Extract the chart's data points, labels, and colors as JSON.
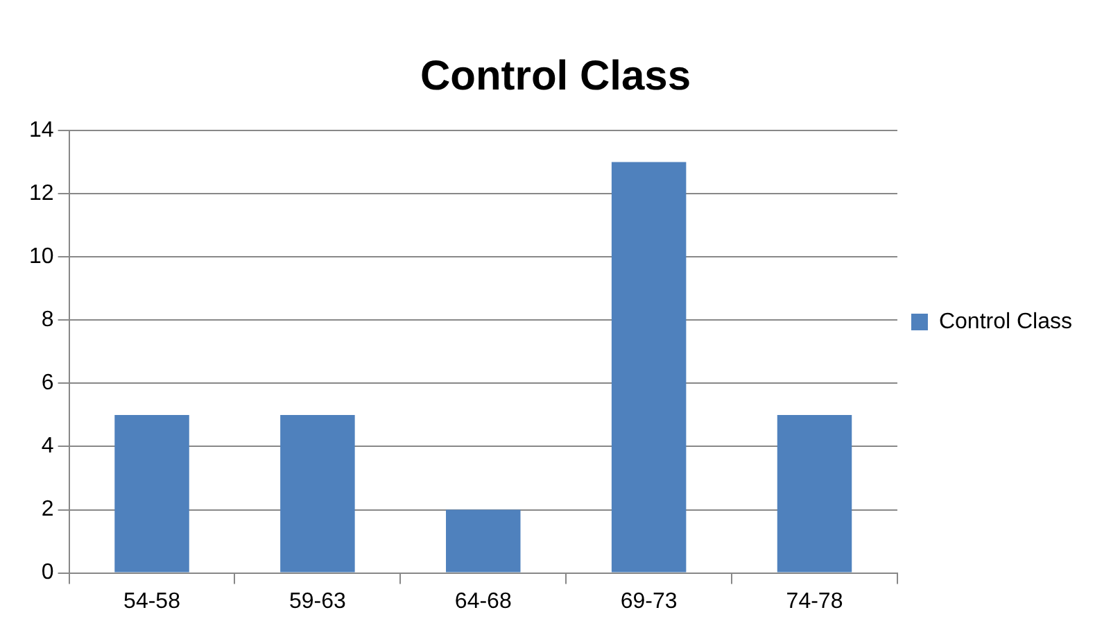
{
  "chart_data": {
    "type": "bar",
    "title": "Control Class",
    "categories": [
      "54-58",
      "59-63",
      "64-68",
      "69-73",
      "74-78"
    ],
    "series": [
      {
        "name": "Control Class",
        "color": "#4f81bd",
        "values": [
          5,
          5,
          2,
          13,
          5
        ]
      }
    ],
    "ylim": [
      0,
      14
    ],
    "yticks": [
      0,
      2,
      4,
      6,
      8,
      10,
      12,
      14
    ],
    "grid": "y",
    "legend": "right"
  }
}
